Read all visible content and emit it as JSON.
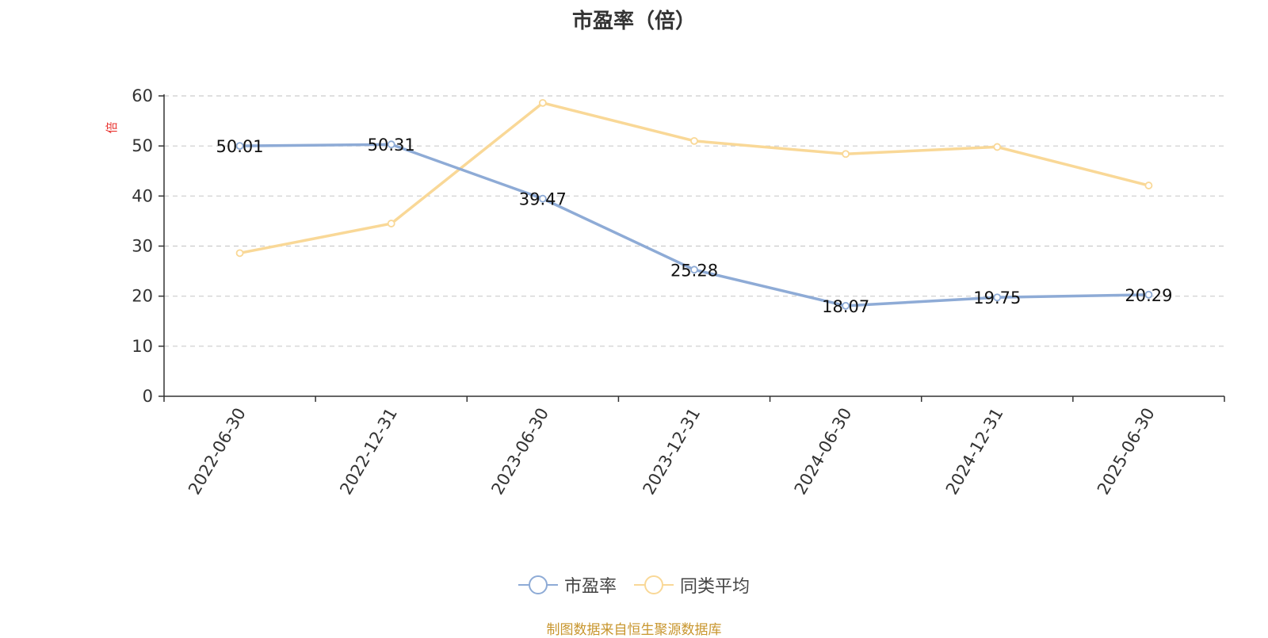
{
  "chart_data": {
    "type": "line",
    "title": "市盈率（倍）",
    "ylabel": "倍",
    "ylim": [
      0,
      60
    ],
    "yticks": [
      0,
      10,
      20,
      30,
      40,
      50,
      60
    ],
    "grid": true,
    "legend_position": "bottom",
    "categories": [
      "2022-06-30",
      "2022-12-31",
      "2023-06-30",
      "2023-12-31",
      "2024-06-30",
      "2024-12-31",
      "2025-06-30"
    ],
    "series": [
      {
        "name": "市盈率",
        "color": "#8eabd6",
        "values": [
          50.01,
          50.31,
          39.47,
          25.28,
          18.07,
          19.75,
          20.29
        ],
        "data_labels": [
          "50.01",
          "50.31",
          "39.47",
          "25.28",
          "18.07",
          "19.75",
          "20.29"
        ]
      },
      {
        "name": "同类平均",
        "color": "#f9d897",
        "values": [
          28.6,
          34.5,
          58.6,
          51.0,
          48.4,
          49.8,
          42.1
        ]
      }
    ]
  },
  "footer": {
    "source": "制图数据来自恒生聚源数据库"
  },
  "colors": {
    "axis": "#333333",
    "grid": "#cccccc",
    "ylabel": "#e8322e",
    "source": "#c8962e"
  }
}
